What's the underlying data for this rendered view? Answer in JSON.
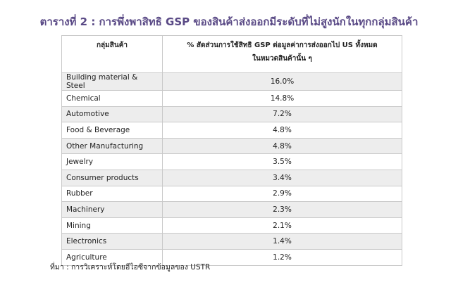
{
  "title": "ตารางที่ 2 : การพึ่งพาสิทธิ GSP ของสินค้าส่งออกมีระดับที่ไม่สูงนักในทุกกลุ่มสินค้า",
  "table": {
    "headers": {
      "category": "กลุ่มสินค้า",
      "share_line1": "% สัดส่วนการใช้สิทธิ GSP ต่อมูลค่าการส่งออกไป US ทั้งหมด",
      "share_line2": "ในหมวดสินค้านั้น ๆ"
    },
    "rows": [
      {
        "category": "Building material & Steel",
        "share": "16.0%"
      },
      {
        "category": "Chemical",
        "share": "14.8%"
      },
      {
        "category": "Automotive",
        "share": "7.2%"
      },
      {
        "category": "Food & Beverage",
        "share": "4.8%"
      },
      {
        "category": "Other Manufacturing",
        "share": "4.8%"
      },
      {
        "category": "Jewelry",
        "share": "3.5%"
      },
      {
        "category": "Consumer products",
        "share": "3.4%"
      },
      {
        "category": "Rubber",
        "share": "2.9%"
      },
      {
        "category": "Machinery",
        "share": "2.3%"
      },
      {
        "category": "Mining",
        "share": "2.1%"
      },
      {
        "category": "Electronics",
        "share": "1.4%"
      },
      {
        "category": "Agriculture",
        "share": "1.2%"
      }
    ]
  },
  "source": "ที่มา : การวิเคราะห์โดยอีไอซีจากข้อมูลของ USTR",
  "colors": {
    "title": "#5a4a86",
    "row_shade": "#ededed",
    "border": "#c9c9c9"
  }
}
